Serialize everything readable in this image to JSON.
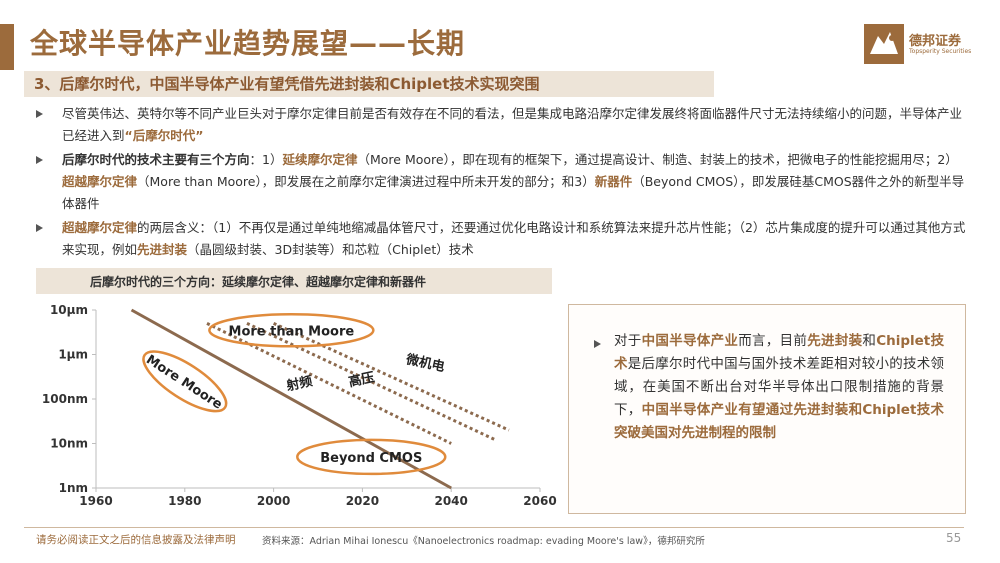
{
  "header": {
    "title": "全球半导体产业趋势展望——长期",
    "subtitle": "3、后摩尔时代，中国半导体产业有望凭借先进封装和Chiplet技术实现突围"
  },
  "logo": {
    "name_cn": "德邦证券",
    "name_en": "Topsperity Securities"
  },
  "bullets": [
    {
      "p1": "尽管英伟达、英特尔等不同产业巨头对于摩尔定律目前是否有效存在不同的看法，但是集成电路沿摩尔定律发展终将面临器件尺寸无法持续缩小的问题，半导体产业已经进入到",
      "hl1": "“后摩尔时代”"
    },
    {
      "lead": "后摩尔时代的技术主要有三个方向",
      "p1": "：1）",
      "hl1": "延续摩尔定律",
      "p2": "（More Moore），即在现有的框架下，通过提高设计、制造、封装上的技术，把微电子的性能挖掘用尽；2）",
      "hl2": "超越摩尔定律",
      "p3": "（More than Moore），即发展在之前摩尔定律演进过程中所未开发的部分；和3）",
      "hl3": "新器件",
      "p4": "（Beyond CMOS），即发展硅基CMOS器件之外的新型半导体器件"
    },
    {
      "hl1": "超越摩尔定律",
      "p1": "的两层含义：（1）不再仅是通过单纯地缩减晶体管尺寸，还要通过优化电路设计和系统算法来提升芯片性能；（2）芯片集成度的提升可以通过其他方式来实现，例如",
      "hl2": "先进封装",
      "p2": "（晶圆级封装、3D封装等）和芯粒（Chiplet）技术"
    }
  ],
  "chart_caption": "后摩尔时代的三个方向：延续摩尔定律、超越摩尔定律和新器件",
  "chart_data": {
    "type": "line",
    "x_ticks": [
      "1960",
      "1980",
      "2000",
      "2020",
      "2040",
      "2060"
    ],
    "y_ticks": [
      "10μm",
      "1μm",
      "100nm",
      "10nm",
      "1nm"
    ],
    "xlim": [
      1960,
      2060
    ],
    "ylim_log_nm": [
      1,
      10000
    ],
    "labels": {
      "more_moore": "More Moore",
      "more_than_moore": "More than Moore",
      "beyond_cmos": "Beyond CMOS",
      "rf": "射频",
      "hv": "高压",
      "mems": "微机电"
    },
    "series": [
      {
        "x": [
          1968,
          2040
        ],
        "y": [
          10000,
          1
        ]
      },
      {
        "x": [
          1985,
          2040
        ],
        "y": [
          5000,
          10
        ]
      },
      {
        "x": [
          1994,
          2050
        ],
        "y": [
          5000,
          12
        ]
      },
      {
        "x": [
          2000,
          2053
        ],
        "y": [
          5000,
          20
        ]
      }
    ],
    "colors": {
      "line": "#8c6a4e",
      "ellipse": "#e08b3c",
      "axis": "#bdbdbd"
    }
  },
  "side": {
    "p1": "对于",
    "hl1": "中国半导体产业",
    "p2": "而言，目前",
    "hl2": "先进封装",
    "p3": "和",
    "hl3": "Chiplet技术",
    "p4": "是后摩尔时代中国与国外技术差距相对较小的技术领域，在美国不断出台对华半导体出口限制措施的背景下，",
    "hl4": "中国半导体产业有望通过先进封装和Chiplet技术突破美国对先进制程的限制"
  },
  "footer": {
    "disclaimer": "请务必阅读正文之后的信息披露及法律声明",
    "source": "资料来源：Adrian Mihai Ionescu《Nanoelectronics roadmap: evading Moore's law》，德邦研究所",
    "page": "55"
  },
  "colors": {
    "brand": "#9c6b3c",
    "band": "#ede4d8"
  }
}
